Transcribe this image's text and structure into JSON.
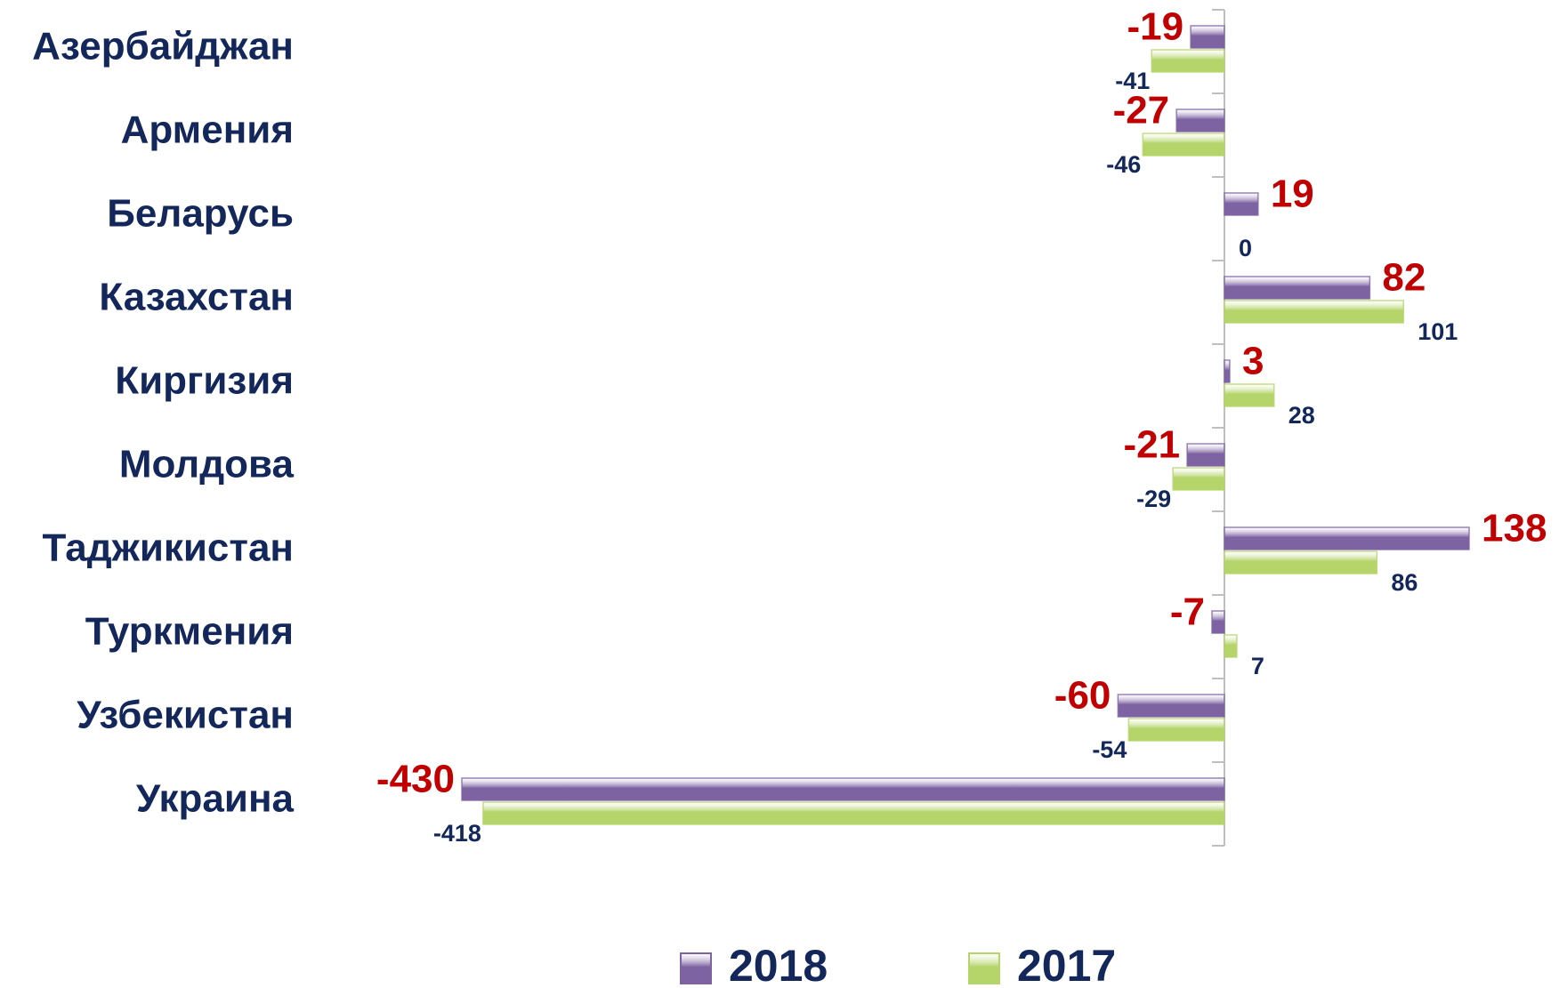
{
  "chart_data": {
    "type": "bar",
    "orientation": "horizontal",
    "categories": [
      "Азербайджан",
      "Армения",
      "Беларусь",
      "Казахстан",
      "Киргизия",
      "Молдова",
      "Таджикистан",
      "Туркмения",
      "Узбекистан",
      "Украина"
    ],
    "series": [
      {
        "name": "2018",
        "color": "#7e63a3",
        "values": [
          -19,
          -27,
          19,
          82,
          3,
          -21,
          138,
          -7,
          -60,
          -430
        ]
      },
      {
        "name": "2017",
        "color": "#b5d56a",
        "values": [
          -41,
          -46,
          0,
          101,
          28,
          -29,
          86,
          7,
          -54,
          -418
        ]
      }
    ],
    "xlim": [
      -430,
      138
    ],
    "legend": "bottom"
  }
}
